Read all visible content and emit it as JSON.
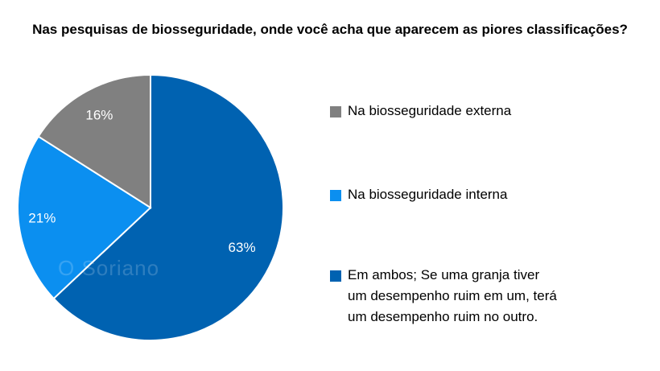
{
  "chart_data": {
    "type": "pie",
    "title": "Nas pesquisas de biosseguridade, onde você acha que aparecem as piores classificações?",
    "slices": [
      {
        "label": "Na biosseguridade externa",
        "value": 16,
        "display": "16%",
        "color": "#808080"
      },
      {
        "label": "Na biosseguridade interna",
        "value": 21,
        "display": "21%",
        "color": "#0b8ff0"
      },
      {
        "label": "Em ambos; Se uma granja tiver um desempenho ruim em um, terá um desempenho ruim no outro.",
        "value": 63,
        "display": "63%",
        "color": "#0062b1"
      }
    ],
    "legend_position": "right"
  },
  "watermark": "O Soriano"
}
